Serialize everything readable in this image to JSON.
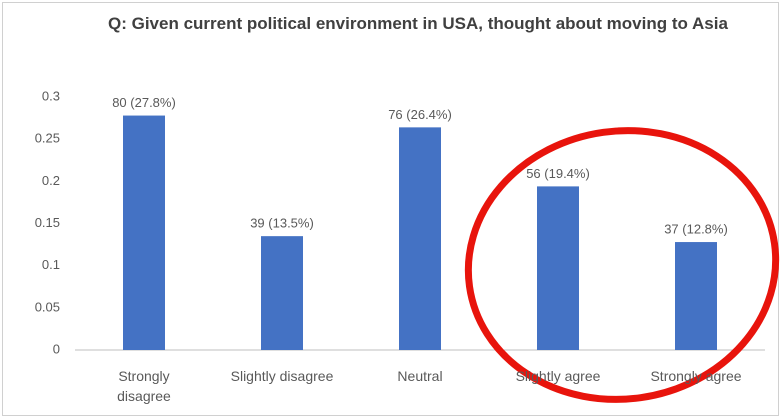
{
  "chart_data": {
    "type": "bar",
    "title": "Q: Given current political environment in USA, thought about moving to Asia",
    "categories": [
      "Strongly disagree",
      "Slightly disagree",
      "Neutral",
      "Slightly agree",
      "Strongly agree"
    ],
    "values": [
      0.278,
      0.135,
      0.264,
      0.194,
      0.128
    ],
    "value_labels": [
      "80 (27.8%)",
      "39 (13.5%)",
      "76 (26.4%)",
      "56 (19.4%)",
      "37 (12.8%)"
    ],
    "color": "#4472c4",
    "ylim": [
      0,
      0.3
    ],
    "yticks": [
      0,
      0.05,
      0.1,
      0.15,
      0.2,
      0.25,
      0.3
    ],
    "grid": false
  }
}
